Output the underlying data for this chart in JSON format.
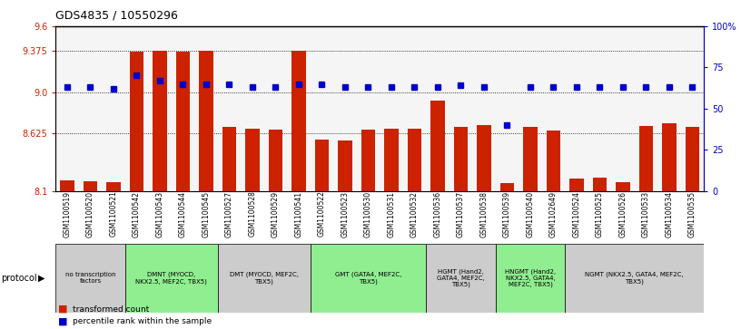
{
  "title": "GDS4835 / 10550296",
  "samples": [
    "GSM1100519",
    "GSM1100520",
    "GSM1100521",
    "GSM1100542",
    "GSM1100543",
    "GSM1100544",
    "GSM1100545",
    "GSM1100527",
    "GSM1100528",
    "GSM1100529",
    "GSM1100541",
    "GSM1100522",
    "GSM1100523",
    "GSM1100530",
    "GSM1100531",
    "GSM1100532",
    "GSM1100536",
    "GSM1100537",
    "GSM1100538",
    "GSM1100539",
    "GSM1100540",
    "GSM1102649",
    "GSM1100524",
    "GSM1100525",
    "GSM1100526",
    "GSM1100533",
    "GSM1100534",
    "GSM1100535"
  ],
  "bar_values": [
    8.195,
    8.19,
    8.18,
    9.37,
    9.375,
    9.37,
    9.375,
    8.68,
    8.67,
    8.66,
    9.375,
    8.565,
    8.555,
    8.66,
    8.67,
    8.67,
    8.92,
    8.68,
    8.7,
    8.17,
    8.68,
    8.65,
    8.215,
    8.22,
    8.18,
    8.69,
    8.72,
    8.68
  ],
  "percentile_values": [
    63,
    63,
    62,
    70,
    67,
    65,
    65,
    65,
    63,
    63,
    65,
    65,
    63,
    63,
    63,
    63,
    63,
    64,
    63,
    40,
    63,
    63,
    63,
    63,
    63,
    63,
    63,
    63
  ],
  "ymin": 8.1,
  "ymax": 9.6,
  "yticks_left": [
    8.1,
    8.625,
    9.0,
    9.375,
    9.6
  ],
  "yticks_right": [
    0,
    25,
    50,
    75,
    100
  ],
  "bar_color": "#cc2200",
  "dot_color": "#0000cc",
  "bg_color": "#ffffff",
  "plot_bg": "#f5f5f5",
  "protocol_groups": [
    {
      "label": "no transcription\nfactors",
      "start": 0,
      "end": 3,
      "color": "#cccccc"
    },
    {
      "label": "DMNT (MYOCD,\nNKX2.5, MEF2C, TBX5)",
      "start": 3,
      "end": 7,
      "color": "#90ee90"
    },
    {
      "label": "DMT (MYOCD, MEF2C,\nTBX5)",
      "start": 7,
      "end": 11,
      "color": "#cccccc"
    },
    {
      "label": "GMT (GATA4, MEF2C,\nTBX5)",
      "start": 11,
      "end": 16,
      "color": "#90ee90"
    },
    {
      "label": "HGMT (Hand2,\nGATA4, MEF2C,\nTBX5)",
      "start": 16,
      "end": 19,
      "color": "#cccccc"
    },
    {
      "label": "HNGMT (Hand2,\nNKX2.5, GATA4,\nMEF2C, TBX5)",
      "start": 19,
      "end": 22,
      "color": "#90ee90"
    },
    {
      "label": "NGMT (NKX2.5, GATA4, MEF2C,\nTBX5)",
      "start": 22,
      "end": 28,
      "color": "#cccccc"
    }
  ]
}
